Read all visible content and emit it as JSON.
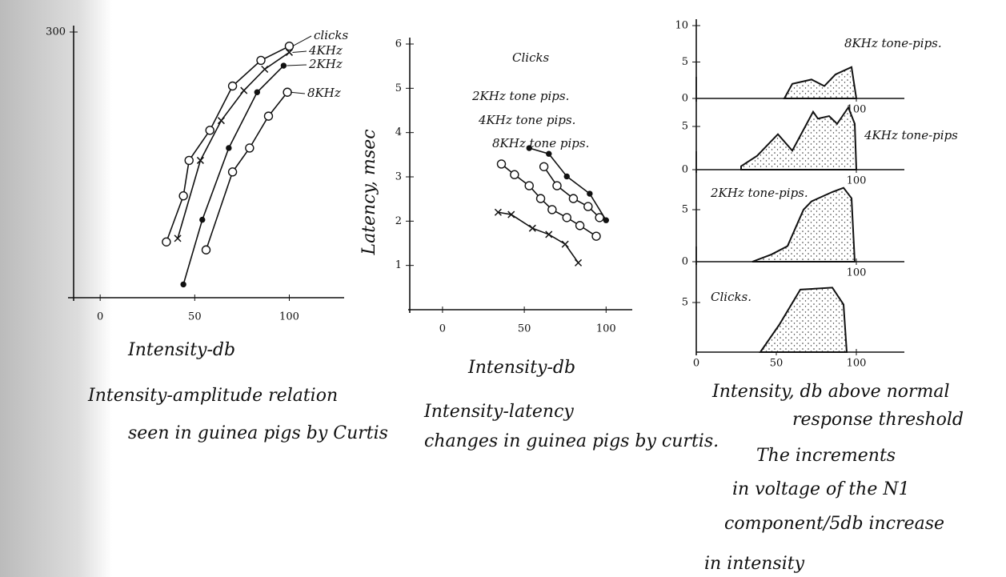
{
  "chart_data": [
    {
      "type": "line",
      "xlabel": "Intensity-db",
      "caption": [
        "Intensity-amplitude relation",
        "seen in guinea pigs by Curtis"
      ],
      "xlim": [
        -17,
        129
      ],
      "ylim": [
        0,
        300
      ],
      "xticks": [
        0,
        50,
        100
      ],
      "yticks": [
        300
      ],
      "series": [
        {
          "name": "clicks",
          "color": "#111",
          "marker": "o",
          "x": [
            35,
            44,
            47,
            58,
            70,
            85,
            100
          ],
          "y": [
            63,
            115,
            155,
            189,
            239,
            268,
            284
          ]
        },
        {
          "name": "4KHz",
          "color": "#111",
          "marker": "x",
          "x": [
            41,
            53,
            64,
            76,
            87,
            100
          ],
          "y": [
            67,
            155,
            200,
            234,
            258,
            277
          ]
        },
        {
          "name": "2KHz",
          "color": "#111",
          "marker": "dot",
          "x": [
            44,
            54,
            68,
            83,
            97
          ],
          "y": [
            15,
            88,
            169,
            232,
            262
          ]
        },
        {
          "name": "8KHz",
          "color": "#111",
          "marker": "o",
          "x": [
            56,
            70,
            79,
            89,
            99
          ],
          "y": [
            54,
            142,
            169,
            205,
            232
          ]
        }
      ]
    },
    {
      "type": "line",
      "xlabel": "Intensity-db",
      "ylabel": "Latency, msec",
      "caption": [
        "Intensity-latency",
        "changes in guinea pigs by curtis."
      ],
      "xlim": [
        -21,
        116
      ],
      "ylim": [
        0,
        6
      ],
      "xticks": [
        0,
        50,
        100
      ],
      "yticks": [
        1,
        2,
        3,
        4,
        5,
        6
      ],
      "series": [
        {
          "name": "Clicks",
          "color": "#111",
          "marker": "x",
          "x": [
            34,
            42,
            55,
            65,
            75,
            83
          ],
          "y": [
            2.2,
            2.15,
            1.84,
            1.7,
            1.48,
            1.06
          ]
        },
        {
          "name": "2KHz tone pips.",
          "color": "#111",
          "marker": "o",
          "x": [
            36,
            44,
            53,
            60,
            67,
            76,
            84,
            94
          ],
          "y": [
            3.29,
            3.05,
            2.8,
            2.51,
            2.26,
            2.08,
            1.9,
            1.66
          ]
        },
        {
          "name": "4KHz tone pips.",
          "color": "#111",
          "marker": "o",
          "x": [
            62,
            70,
            80,
            89,
            96
          ],
          "y": [
            3.23,
            2.8,
            2.51,
            2.33,
            2.08
          ]
        },
        {
          "name": "8KHz tone pips.",
          "color": "#111",
          "marker": "dot",
          "x": [
            53,
            65,
            76,
            90,
            100
          ],
          "y": [
            3.65,
            3.52,
            3.01,
            2.62,
            2.02
          ]
        }
      ]
    },
    {
      "type": "area",
      "title": "8KHz tone-pips.",
      "color": "#111",
      "xlim": [
        0,
        130
      ],
      "ylim": [
        0,
        10
      ],
      "xticks": [
        100
      ],
      "yticks": [
        0,
        5,
        10
      ],
      "x": [
        55,
        60,
        72,
        80,
        87,
        97,
        100
      ],
      "y": [
        0,
        2,
        2.6,
        1.7,
        3.3,
        4.3,
        0
      ]
    },
    {
      "type": "area",
      "title": "4KHz tone-pips",
      "color": "#111",
      "xlim": [
        0,
        130
      ],
      "ylim": [
        0,
        10
      ],
      "xticks": [
        100
      ],
      "yticks": [
        0,
        5
      ],
      "x": [
        28,
        38,
        51,
        60,
        73,
        76,
        83,
        88,
        95,
        99,
        100
      ],
      "y": [
        0.4,
        1.6,
        4.1,
        2.2,
        6.7,
        5.9,
        6.2,
        5.3,
        7.2,
        5.3,
        0
      ]
    },
    {
      "type": "area",
      "title": "2KHz tone-pips.",
      "color": "#111",
      "xlim": [
        0,
        130
      ],
      "ylim": [
        0,
        10
      ],
      "xticks": [
        100
      ],
      "yticks": [
        0,
        5
      ],
      "x": [
        35,
        47,
        57,
        67,
        72,
        85,
        92,
        97,
        99
      ],
      "y": [
        0,
        0.7,
        1.5,
        5,
        5.8,
        6.7,
        7.1,
        6.1,
        0
      ]
    },
    {
      "type": "area",
      "title": "Clicks.",
      "color": "#111",
      "xlim": [
        0,
        130
      ],
      "ylim": [
        0,
        10
      ],
      "xticks": [
        0,
        50,
        100
      ],
      "yticks": [
        5
      ],
      "x": [
        40,
        52,
        65,
        85,
        92,
        94
      ],
      "y": [
        0,
        2.8,
        6.3,
        6.5,
        4.8,
        0
      ]
    }
  ],
  "notes": [
    "Intensity, db above normal",
    "response threshold",
    "The increments",
    "in voltage of the N1",
    "component/5db increase",
    "in intensity"
  ]
}
